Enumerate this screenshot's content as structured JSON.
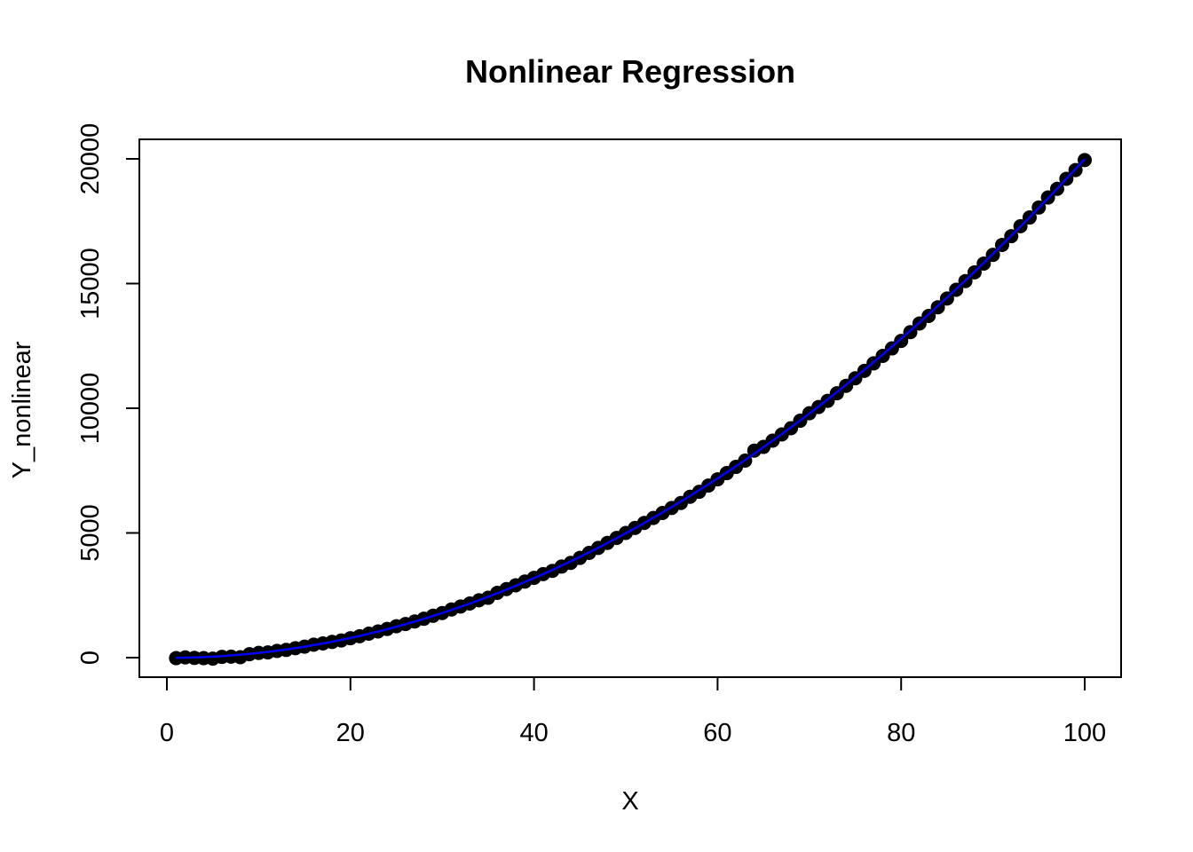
{
  "chart_data": {
    "type": "scatter",
    "title": "Nonlinear Regression",
    "xlabel": "X",
    "ylabel": "Y_nonlinear",
    "xlim": [
      1,
      100
    ],
    "ylim": [
      0,
      20000
    ],
    "x_ticks": [
      0,
      20,
      40,
      60,
      80,
      100
    ],
    "y_ticks": [
      0,
      5000,
      10000,
      15000,
      20000
    ],
    "grid": false,
    "legend": "none",
    "series": [
      {
        "kind": "points",
        "color": "#000000",
        "x": [
          1,
          2,
          3,
          4,
          5,
          6,
          7,
          8,
          9,
          10,
          11,
          12,
          13,
          14,
          15,
          16,
          17,
          18,
          19,
          20,
          21,
          22,
          23,
          24,
          25,
          26,
          27,
          28,
          29,
          30,
          31,
          32,
          33,
          34,
          35,
          36,
          37,
          38,
          39,
          40,
          41,
          42,
          43,
          44,
          45,
          46,
          47,
          48,
          49,
          50,
          51,
          52,
          53,
          54,
          55,
          56,
          57,
          58,
          59,
          60,
          61,
          62,
          63,
          64,
          65,
          66,
          67,
          68,
          69,
          70,
          71,
          72,
          73,
          74,
          75,
          76,
          77,
          78,
          79,
          80,
          81,
          82,
          83,
          84,
          85,
          86,
          87,
          88,
          89,
          90,
          91,
          92,
          93,
          94,
          95,
          96,
          97,
          98,
          99,
          100
        ],
        "y": [
          -20,
          10,
          -10,
          -20,
          -40,
          30,
          40,
          20,
          140,
          190,
          210,
          270,
          310,
          380,
          440,
          520,
          570,
          630,
          690,
          780,
          860,
          960,
          1050,
          1150,
          1260,
          1350,
          1450,
          1560,
          1680,
          1790,
          1930,
          2050,
          2170,
          2300,
          2400,
          2600,
          2750,
          2900,
          3050,
          3200,
          3350,
          3480,
          3650,
          3800,
          4000,
          4200,
          4400,
          4600,
          4800,
          5000,
          5200,
          5400,
          5600,
          5800,
          6000,
          6200,
          6450,
          6650,
          6900,
          7150,
          7400,
          7650,
          7900,
          8300,
          8450,
          8700,
          8950,
          9200,
          9500,
          9800,
          10050,
          10300,
          10600,
          10900,
          11200,
          11500,
          11800,
          12100,
          12400,
          12700,
          13050,
          13400,
          13700,
          14050,
          14400,
          14750,
          15100,
          15450,
          15800,
          16150,
          16550,
          16900,
          17300,
          17650,
          18050,
          18450,
          18800,
          19200,
          19550,
          19950
        ]
      },
      {
        "kind": "fit-line",
        "color": "#0000ff",
        "formula_a": 2.0,
        "formula_b": -10
      }
    ]
  }
}
